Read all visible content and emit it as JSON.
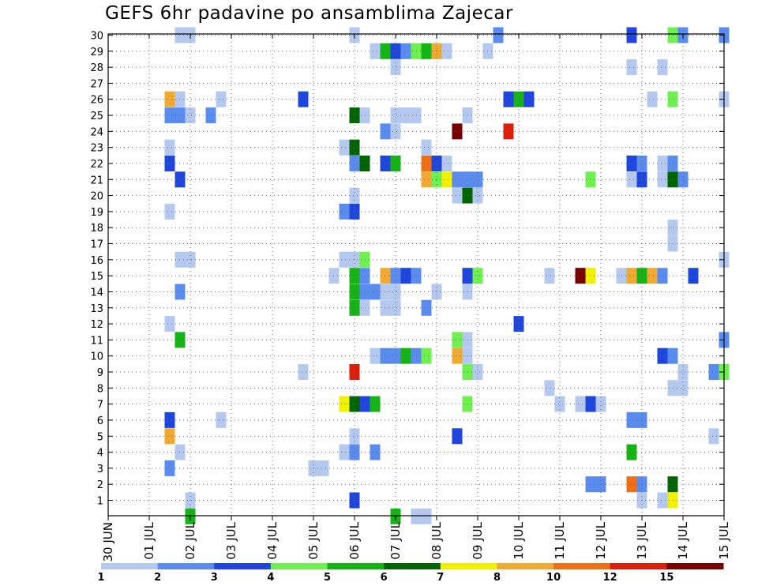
{
  "chart_data": {
    "type": "heatmap",
    "title": "GEFS 6hr padavine po ansamblima Zajecar",
    "xlabel": "",
    "ylabel": "",
    "x_tick_labels": [
      "30 JUN",
      "01 JUL",
      "02 JUL",
      "03 JUL",
      "04 JUL",
      "05 JUL",
      "06 JUL",
      "07 JUL",
      "08 JUL",
      "09 JUL",
      "10 JUL",
      "11 JUL",
      "12 JUL",
      "13 JUL",
      "14 JUL",
      "15 JUL"
    ],
    "y_tick_labels": [
      "1",
      "2",
      "3",
      "4",
      "5",
      "6",
      "7",
      "8",
      "9",
      "10",
      "11",
      "12",
      "13",
      "14",
      "15",
      "16",
      "17",
      "18",
      "19",
      "20",
      "21",
      "22",
      "23",
      "24",
      "25",
      "26",
      "27",
      "28",
      "29",
      "30"
    ],
    "xlim_days": [
      0,
      15
    ],
    "ylim": [
      0,
      30
    ],
    "grid": true,
    "color_scale": {
      "levels": [
        "1",
        "2",
        "3",
        "4",
        "5",
        "6",
        "7",
        "8",
        "10",
        "12",
        "15",
        "20"
      ],
      "colors": [
        "#b4c8f0",
        "#5a8cf0",
        "#1e46dc",
        "#6ef050",
        "#14b414",
        "#006400",
        "#f0f000",
        "#f0aa32",
        "#f06e14",
        "#dc1e0a",
        "#780000"
      ]
    },
    "cells": [
      [
        2.0,
        1,
        1
      ],
      [
        6.0,
        1,
        3
      ],
      [
        13.0,
        1,
        1
      ],
      [
        13.5,
        1,
        1
      ],
      [
        13.75,
        1,
        7
      ],
      [
        11.75,
        2,
        2
      ],
      [
        12.0,
        2,
        2
      ],
      [
        12.75,
        2,
        9
      ],
      [
        13.0,
        2,
        2
      ],
      [
        13.75,
        2,
        6
      ],
      [
        1.5,
        3,
        2
      ],
      [
        5.0,
        3,
        1
      ],
      [
        5.25,
        3,
        1
      ],
      [
        1.75,
        4,
        1
      ],
      [
        5.75,
        4,
        1
      ],
      [
        6.0,
        4,
        2
      ],
      [
        6.5,
        4,
        2
      ],
      [
        12.75,
        4,
        5
      ],
      [
        1.5,
        5,
        8
      ],
      [
        6.0,
        5,
        1
      ],
      [
        8.5,
        5,
        3
      ],
      [
        14.75,
        5,
        1
      ],
      [
        1.5,
        6,
        3
      ],
      [
        2.75,
        6,
        1
      ],
      [
        12.75,
        6,
        2
      ],
      [
        13.0,
        6,
        2
      ],
      [
        5.75,
        7,
        7
      ],
      [
        6.0,
        7,
        6
      ],
      [
        6.25,
        7,
        3
      ],
      [
        6.5,
        7,
        5
      ],
      [
        8.75,
        7,
        4
      ],
      [
        11.0,
        7,
        1
      ],
      [
        11.5,
        7,
        1
      ],
      [
        11.75,
        7,
        3
      ],
      [
        12.0,
        7,
        1
      ],
      [
        10.75,
        8,
        1
      ],
      [
        13.75,
        8,
        1
      ],
      [
        14.0,
        8,
        1
      ],
      [
        4.75,
        9,
        1
      ],
      [
        6.0,
        9,
        10
      ],
      [
        8.75,
        9,
        4
      ],
      [
        9.0,
        9,
        1
      ],
      [
        14.0,
        9,
        1
      ],
      [
        14.75,
        9,
        2
      ],
      [
        15.0,
        9,
        4
      ],
      [
        6.5,
        10,
        1
      ],
      [
        6.75,
        10,
        2
      ],
      [
        7.0,
        10,
        2
      ],
      [
        7.25,
        10,
        5
      ],
      [
        7.5,
        10,
        2
      ],
      [
        7.75,
        10,
        4
      ],
      [
        8.5,
        10,
        8
      ],
      [
        8.75,
        10,
        1
      ],
      [
        13.5,
        10,
        3
      ],
      [
        13.75,
        10,
        2
      ],
      [
        1.75,
        11,
        5
      ],
      [
        8.5,
        11,
        4
      ],
      [
        8.75,
        11,
        1
      ],
      [
        15.0,
        11,
        2
      ],
      [
        1.5,
        12,
        1
      ],
      [
        10.0,
        12,
        3
      ],
      [
        6.0,
        13,
        5
      ],
      [
        6.25,
        13,
        1
      ],
      [
        6.75,
        13,
        1
      ],
      [
        7.0,
        13,
        1
      ],
      [
        7.75,
        13,
        2
      ],
      [
        1.75,
        14,
        2
      ],
      [
        6.0,
        14,
        5
      ],
      [
        6.25,
        14,
        2
      ],
      [
        6.5,
        14,
        2
      ],
      [
        6.75,
        14,
        1
      ],
      [
        7.0,
        14,
        1
      ],
      [
        8.0,
        14,
        1
      ],
      [
        8.75,
        14,
        1
      ],
      [
        5.5,
        15,
        1
      ],
      [
        6.0,
        15,
        5
      ],
      [
        6.25,
        15,
        2
      ],
      [
        6.75,
        15,
        8
      ],
      [
        7.0,
        15,
        2
      ],
      [
        7.25,
        15,
        3
      ],
      [
        7.5,
        15,
        2
      ],
      [
        8.75,
        15,
        3
      ],
      [
        9.0,
        15,
        4
      ],
      [
        10.75,
        15,
        1
      ],
      [
        11.5,
        15,
        11
      ],
      [
        11.75,
        15,
        7
      ],
      [
        12.5,
        15,
        1
      ],
      [
        12.75,
        15,
        8
      ],
      [
        13.0,
        15,
        5
      ],
      [
        13.25,
        15,
        8
      ],
      [
        13.5,
        15,
        2
      ],
      [
        14.25,
        15,
        3
      ],
      [
        1.75,
        16,
        1
      ],
      [
        2.0,
        16,
        1
      ],
      [
        5.75,
        16,
        1
      ],
      [
        6.0,
        16,
        1
      ],
      [
        6.25,
        16,
        4
      ],
      [
        15.0,
        16,
        1
      ],
      [
        13.75,
        17,
        1
      ],
      [
        13.75,
        18,
        1
      ],
      [
        1.5,
        19,
        1
      ],
      [
        5.75,
        19,
        2
      ],
      [
        6.0,
        19,
        3
      ],
      [
        6.0,
        20,
        1
      ],
      [
        8.5,
        20,
        1
      ],
      [
        8.75,
        20,
        6
      ],
      [
        9.0,
        20,
        1
      ],
      [
        1.75,
        21,
        3
      ],
      [
        7.75,
        21,
        8
      ],
      [
        8.0,
        21,
        4
      ],
      [
        8.25,
        21,
        7
      ],
      [
        8.5,
        21,
        2
      ],
      [
        8.75,
        21,
        2
      ],
      [
        9.0,
        21,
        2
      ],
      [
        11.75,
        21,
        4
      ],
      [
        12.75,
        21,
        1
      ],
      [
        13.0,
        21,
        3
      ],
      [
        13.5,
        21,
        1
      ],
      [
        13.75,
        21,
        6
      ],
      [
        14.0,
        21,
        2
      ],
      [
        1.5,
        22,
        3
      ],
      [
        6.0,
        22,
        2
      ],
      [
        6.25,
        22,
        6
      ],
      [
        6.75,
        22,
        3
      ],
      [
        7.0,
        22,
        5
      ],
      [
        7.75,
        22,
        9
      ],
      [
        8.0,
        22,
        3
      ],
      [
        8.25,
        22,
        1
      ],
      [
        12.75,
        22,
        3
      ],
      [
        13.0,
        22,
        2
      ],
      [
        13.5,
        22,
        1
      ],
      [
        13.75,
        22,
        2
      ],
      [
        1.5,
        23,
        1
      ],
      [
        5.75,
        23,
        1
      ],
      [
        6.0,
        23,
        6
      ],
      [
        7.75,
        23,
        1
      ],
      [
        6.75,
        24,
        2
      ],
      [
        7.0,
        24,
        1
      ],
      [
        8.5,
        24,
        11
      ],
      [
        9.75,
        24,
        10
      ],
      [
        1.5,
        25,
        2
      ],
      [
        1.75,
        25,
        2
      ],
      [
        2.0,
        25,
        1
      ],
      [
        2.5,
        25,
        2
      ],
      [
        6.0,
        25,
        6
      ],
      [
        6.25,
        25,
        1
      ],
      [
        7.0,
        25,
        1
      ],
      [
        7.25,
        25,
        1
      ],
      [
        7.5,
        25,
        1
      ],
      [
        8.75,
        25,
        1
      ],
      [
        1.5,
        26,
        8
      ],
      [
        1.75,
        26,
        1
      ],
      [
        2.75,
        26,
        1
      ],
      [
        4.75,
        26,
        3
      ],
      [
        9.75,
        26,
        3
      ],
      [
        10.0,
        26,
        5
      ],
      [
        10.25,
        26,
        3
      ],
      [
        13.25,
        26,
        1
      ],
      [
        13.75,
        26,
        4
      ],
      [
        15.0,
        26,
        1
      ],
      [
        12.75,
        28,
        1
      ],
      [
        13.5,
        28,
        1
      ],
      [
        7.0,
        28,
        1
      ],
      [
        6.5,
        29,
        1
      ],
      [
        6.75,
        29,
        5
      ],
      [
        7.0,
        29,
        3
      ],
      [
        7.25,
        29,
        2
      ],
      [
        7.5,
        29,
        4
      ],
      [
        7.75,
        29,
        5
      ],
      [
        8.0,
        29,
        8
      ],
      [
        8.25,
        29,
        1
      ],
      [
        9.25,
        29,
        1
      ],
      [
        1.75,
        30,
        1
      ],
      [
        2.0,
        30,
        1
      ],
      [
        6.0,
        30,
        1
      ],
      [
        9.5,
        30,
        2
      ],
      [
        12.75,
        30,
        3
      ],
      [
        13.75,
        30,
        4
      ],
      [
        14.0,
        30,
        2
      ],
      [
        15.0,
        30,
        2
      ],
      [
        2.0,
        0,
        5
      ],
      [
        7.0,
        0,
        5
      ],
      [
        7.5,
        0,
        1
      ],
      [
        7.75,
        0,
        1
      ]
    ]
  }
}
